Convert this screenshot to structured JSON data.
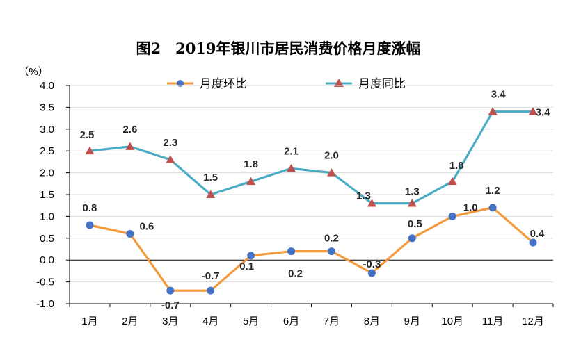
{
  "chart_data": {
    "type": "line",
    "title": "图2　2019年银川市居民消费价格月度涨幅",
    "ylabel": "（%）",
    "xlabel": "",
    "categories": [
      "1月",
      "2月",
      "3月",
      "4月",
      "5月",
      "6月",
      "7月",
      "8月",
      "9月",
      "10月",
      "11月",
      "12月"
    ],
    "ylim": [
      -1.0,
      4.0
    ],
    "yticks": [
      "4.0",
      "3.5",
      "3.0",
      "2.5",
      "2.0",
      "1.5",
      "1.0",
      "0.5",
      "0.0",
      "-0.5",
      "-1.0"
    ],
    "ytick_values": [
      4.0,
      3.5,
      3.0,
      2.5,
      2.0,
      1.5,
      1.0,
      0.5,
      0.0,
      -0.5,
      -1.0
    ],
    "grid": true,
    "legend": "top",
    "series": [
      {
        "name": "月度环比",
        "color": "#F39A3D",
        "marker_color": "#4472C4",
        "marker": "circle",
        "values": [
          0.8,
          0.6,
          -0.7,
          -0.7,
          0.1,
          0.2,
          0.2,
          -0.3,
          0.5,
          1.0,
          1.2,
          0.4
        ],
        "labels": [
          "0.8",
          "0.6",
          "-0.7",
          "-0.7",
          "0.1",
          "0.2",
          "0.2",
          "-0.3",
          "0.5",
          "1.0",
          "1.2",
          "0.4"
        ]
      },
      {
        "name": "月度同比",
        "color": "#4BACC6",
        "marker_color": "#C0504D",
        "marker": "triangle",
        "values": [
          2.5,
          2.6,
          2.3,
          1.5,
          1.8,
          2.1,
          2.0,
          1.3,
          1.3,
          1.8,
          3.4,
          3.4
        ],
        "labels": [
          "2.5",
          "2.6",
          "2.3",
          "1.5",
          "1.8",
          "2.1",
          "2.0",
          "1.3",
          "1.3",
          "1.8",
          "3.4",
          "3.4"
        ]
      }
    ]
  }
}
